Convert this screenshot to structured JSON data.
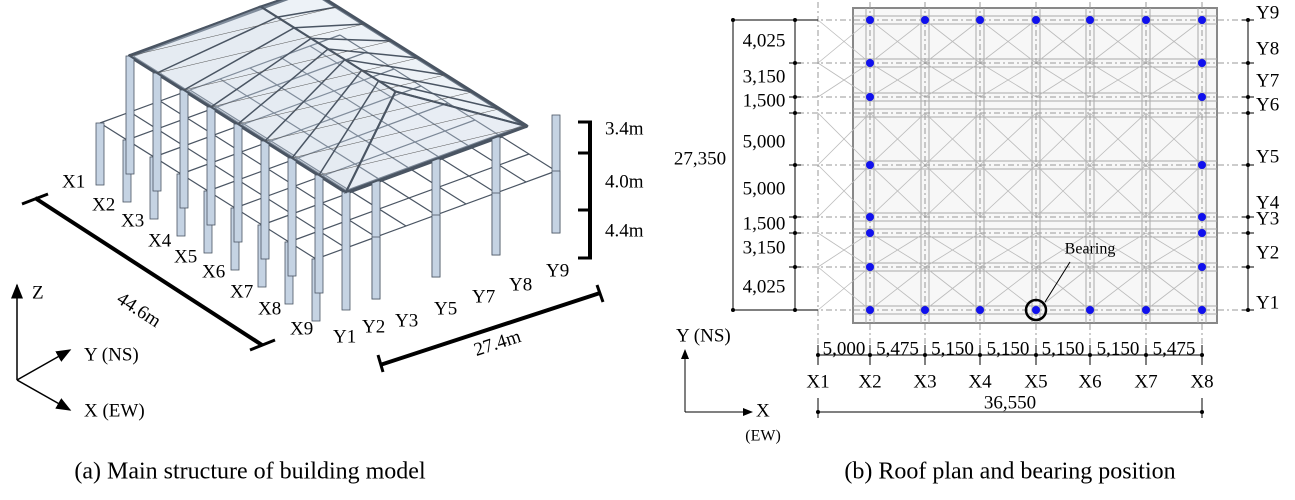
{
  "panel_a": {
    "caption": "(a) Main structure of building model",
    "x_grid": [
      "X1",
      "X2",
      "X3",
      "X4",
      "X5",
      "X6",
      "X7",
      "X8",
      "X9"
    ],
    "y_grid": [
      "Y1",
      "Y2",
      "Y3",
      "Y5",
      "Y7",
      "Y8",
      "Y9"
    ],
    "length_ew": "44.6m",
    "length_ns": "27.4m",
    "heights": [
      "3.4m",
      "4.0m",
      "4.4m"
    ],
    "axes": {
      "z": "Z",
      "y": "Y (NS)",
      "x": "X (EW)"
    }
  },
  "panel_b": {
    "caption": "(b) Roof plan and bearing position",
    "ns_spans": [
      "4,025",
      "3,150",
      "1,500",
      "5,000",
      "5,000",
      "1,500",
      "3,150",
      "4,025"
    ],
    "ns_total": "27,350",
    "y_grid": [
      "Y9",
      "Y8",
      "Y7",
      "Y6",
      "Y5",
      "Y4",
      "Y3",
      "Y2",
      "Y1"
    ],
    "ew_spans": [
      "5,000",
      "5,475",
      "5,150",
      "5,150",
      "5,150",
      "5,150",
      "5,475"
    ],
    "x_grid": [
      "X1",
      "X2",
      "X3",
      "X4",
      "X5",
      "X6",
      "X7",
      "X8"
    ],
    "ew_total": "36,550",
    "bearing": "Bearing",
    "axes": {
      "y": "Y (NS)",
      "x": "X",
      "x_unit": "(EW)"
    }
  }
}
